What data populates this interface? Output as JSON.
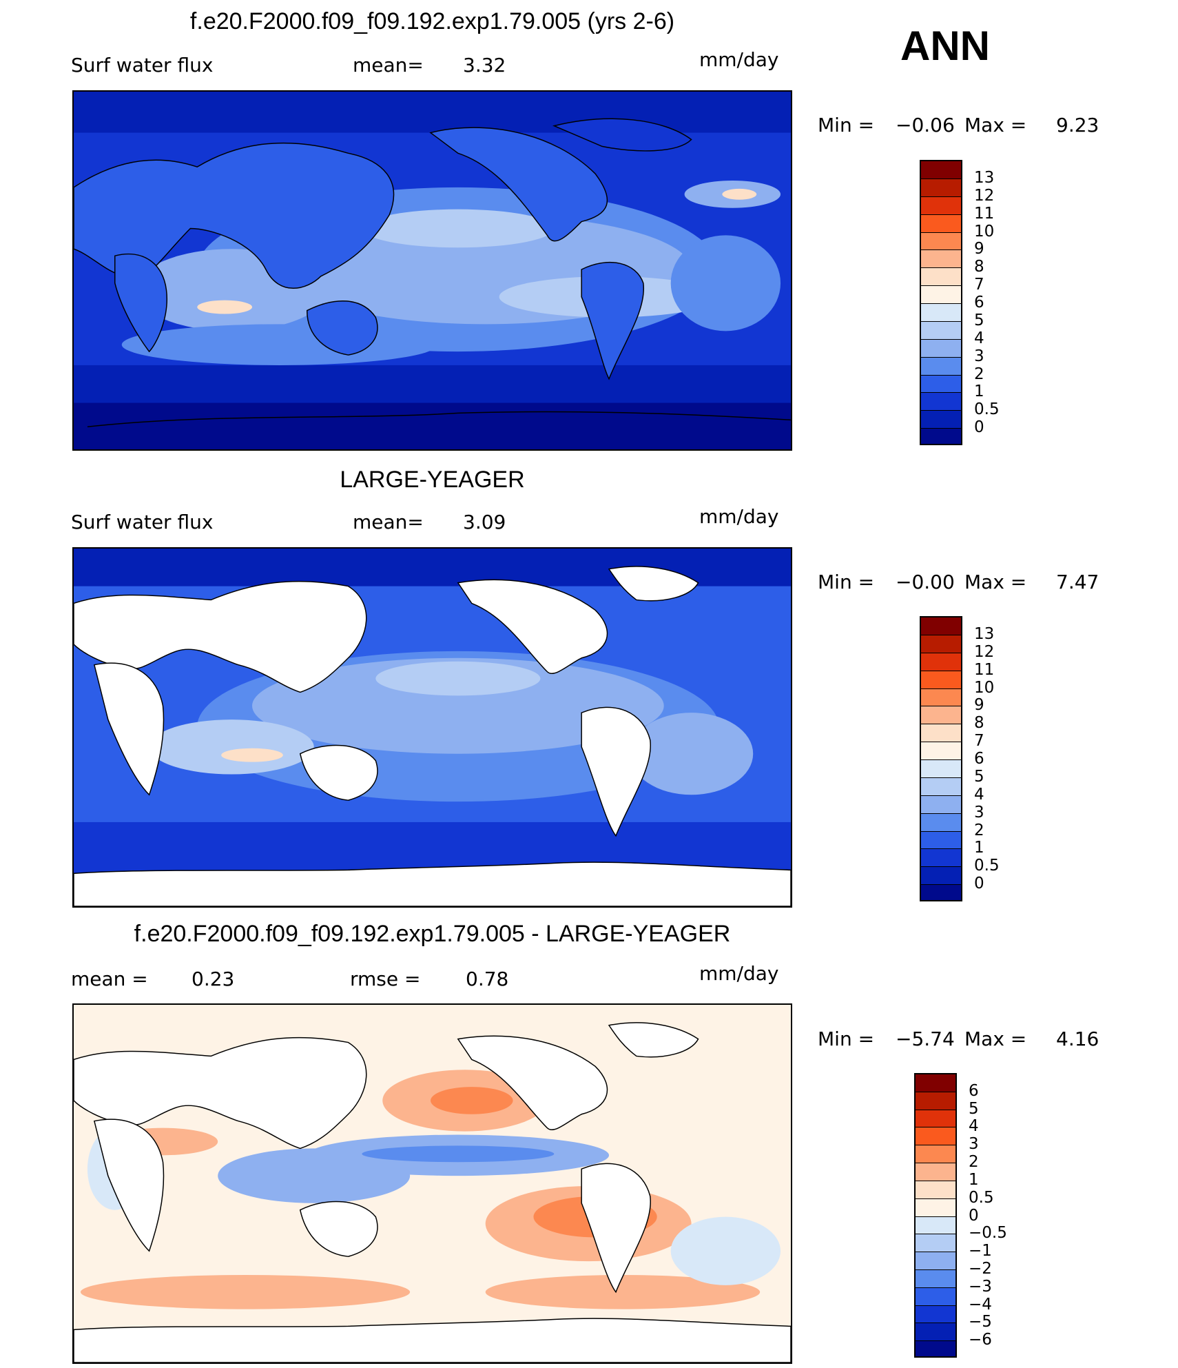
{
  "season": "ANN",
  "panels": [
    {
      "id": "model",
      "title": "f.e20.F2000.f09_f09.192.exp1.79.005 (yrs 2-6)",
      "left_label": "Surf  water  flux",
      "mid_label": "mean=",
      "mid_value": "3.32",
      "right_mid_label": "",
      "right_mid_value": "",
      "units": "mm/day",
      "min_label": "Min  =",
      "min_value": "−0.06",
      "max_label": "Max  =",
      "max_value": "9.23",
      "colorbar_labels": [
        "13",
        "12",
        "11",
        "10",
        "9",
        "8",
        "7",
        "6",
        "5",
        "4",
        "3",
        "2",
        "1",
        "0.5",
        "0"
      ]
    },
    {
      "id": "obs",
      "title": "LARGE-YEAGER",
      "left_label": "Surf  water  flux",
      "mid_label": "mean=",
      "mid_value": "3.09",
      "right_mid_label": "",
      "right_mid_value": "",
      "units": "mm/day",
      "min_label": "Min  =",
      "min_value": "−0.00",
      "max_label": "Max  =",
      "max_value": "7.47",
      "colorbar_labels": [
        "13",
        "12",
        "11",
        "10",
        "9",
        "8",
        "7",
        "6",
        "5",
        "4",
        "3",
        "2",
        "1",
        "0.5",
        "0"
      ]
    },
    {
      "id": "diff",
      "title": "f.e20.F2000.f09_f09.192.exp1.79.005 - LARGE-YEAGER",
      "left_label": "mean  =",
      "mid_label": "0.23",
      "mid_value": "",
      "right_mid_label": "rmse  =",
      "right_mid_value": "0.78",
      "units": "mm/day",
      "min_label": "Min  =",
      "min_value": "−5.74",
      "max_label": "Max  =",
      "max_value": "4.16",
      "colorbar_labels": [
        "6",
        "5",
        "4",
        "3",
        "2",
        "1",
        "0.5",
        "0",
        "−0.5",
        "−1",
        "−2",
        "−3",
        "−4",
        "−5",
        "−6"
      ]
    }
  ],
  "colors": {
    "abs_scale": [
      "#800000",
      "#b71c00",
      "#e0320a",
      "#fa5a1e",
      "#fc8850",
      "#fcb48e",
      "#fde0c8",
      "#fef3e6",
      "#d8e8f8",
      "#b4cdf4",
      "#8eb0f0",
      "#5a8cee",
      "#2d5ee8",
      "#1236d2",
      "#0420b4",
      "#000a8c"
    ],
    "diff_scale": [
      "#800000",
      "#b71c00",
      "#e0320a",
      "#fa5a1e",
      "#fc8850",
      "#fcb48e",
      "#fde0c8",
      "#fef3e6",
      "#d8e8f8",
      "#b4cdf4",
      "#8eb0f0",
      "#5a8cee",
      "#2d5ee8",
      "#1236d2",
      "#0420b4",
      "#000a8c"
    ],
    "land": "#ffffff",
    "coast": "#000000"
  }
}
